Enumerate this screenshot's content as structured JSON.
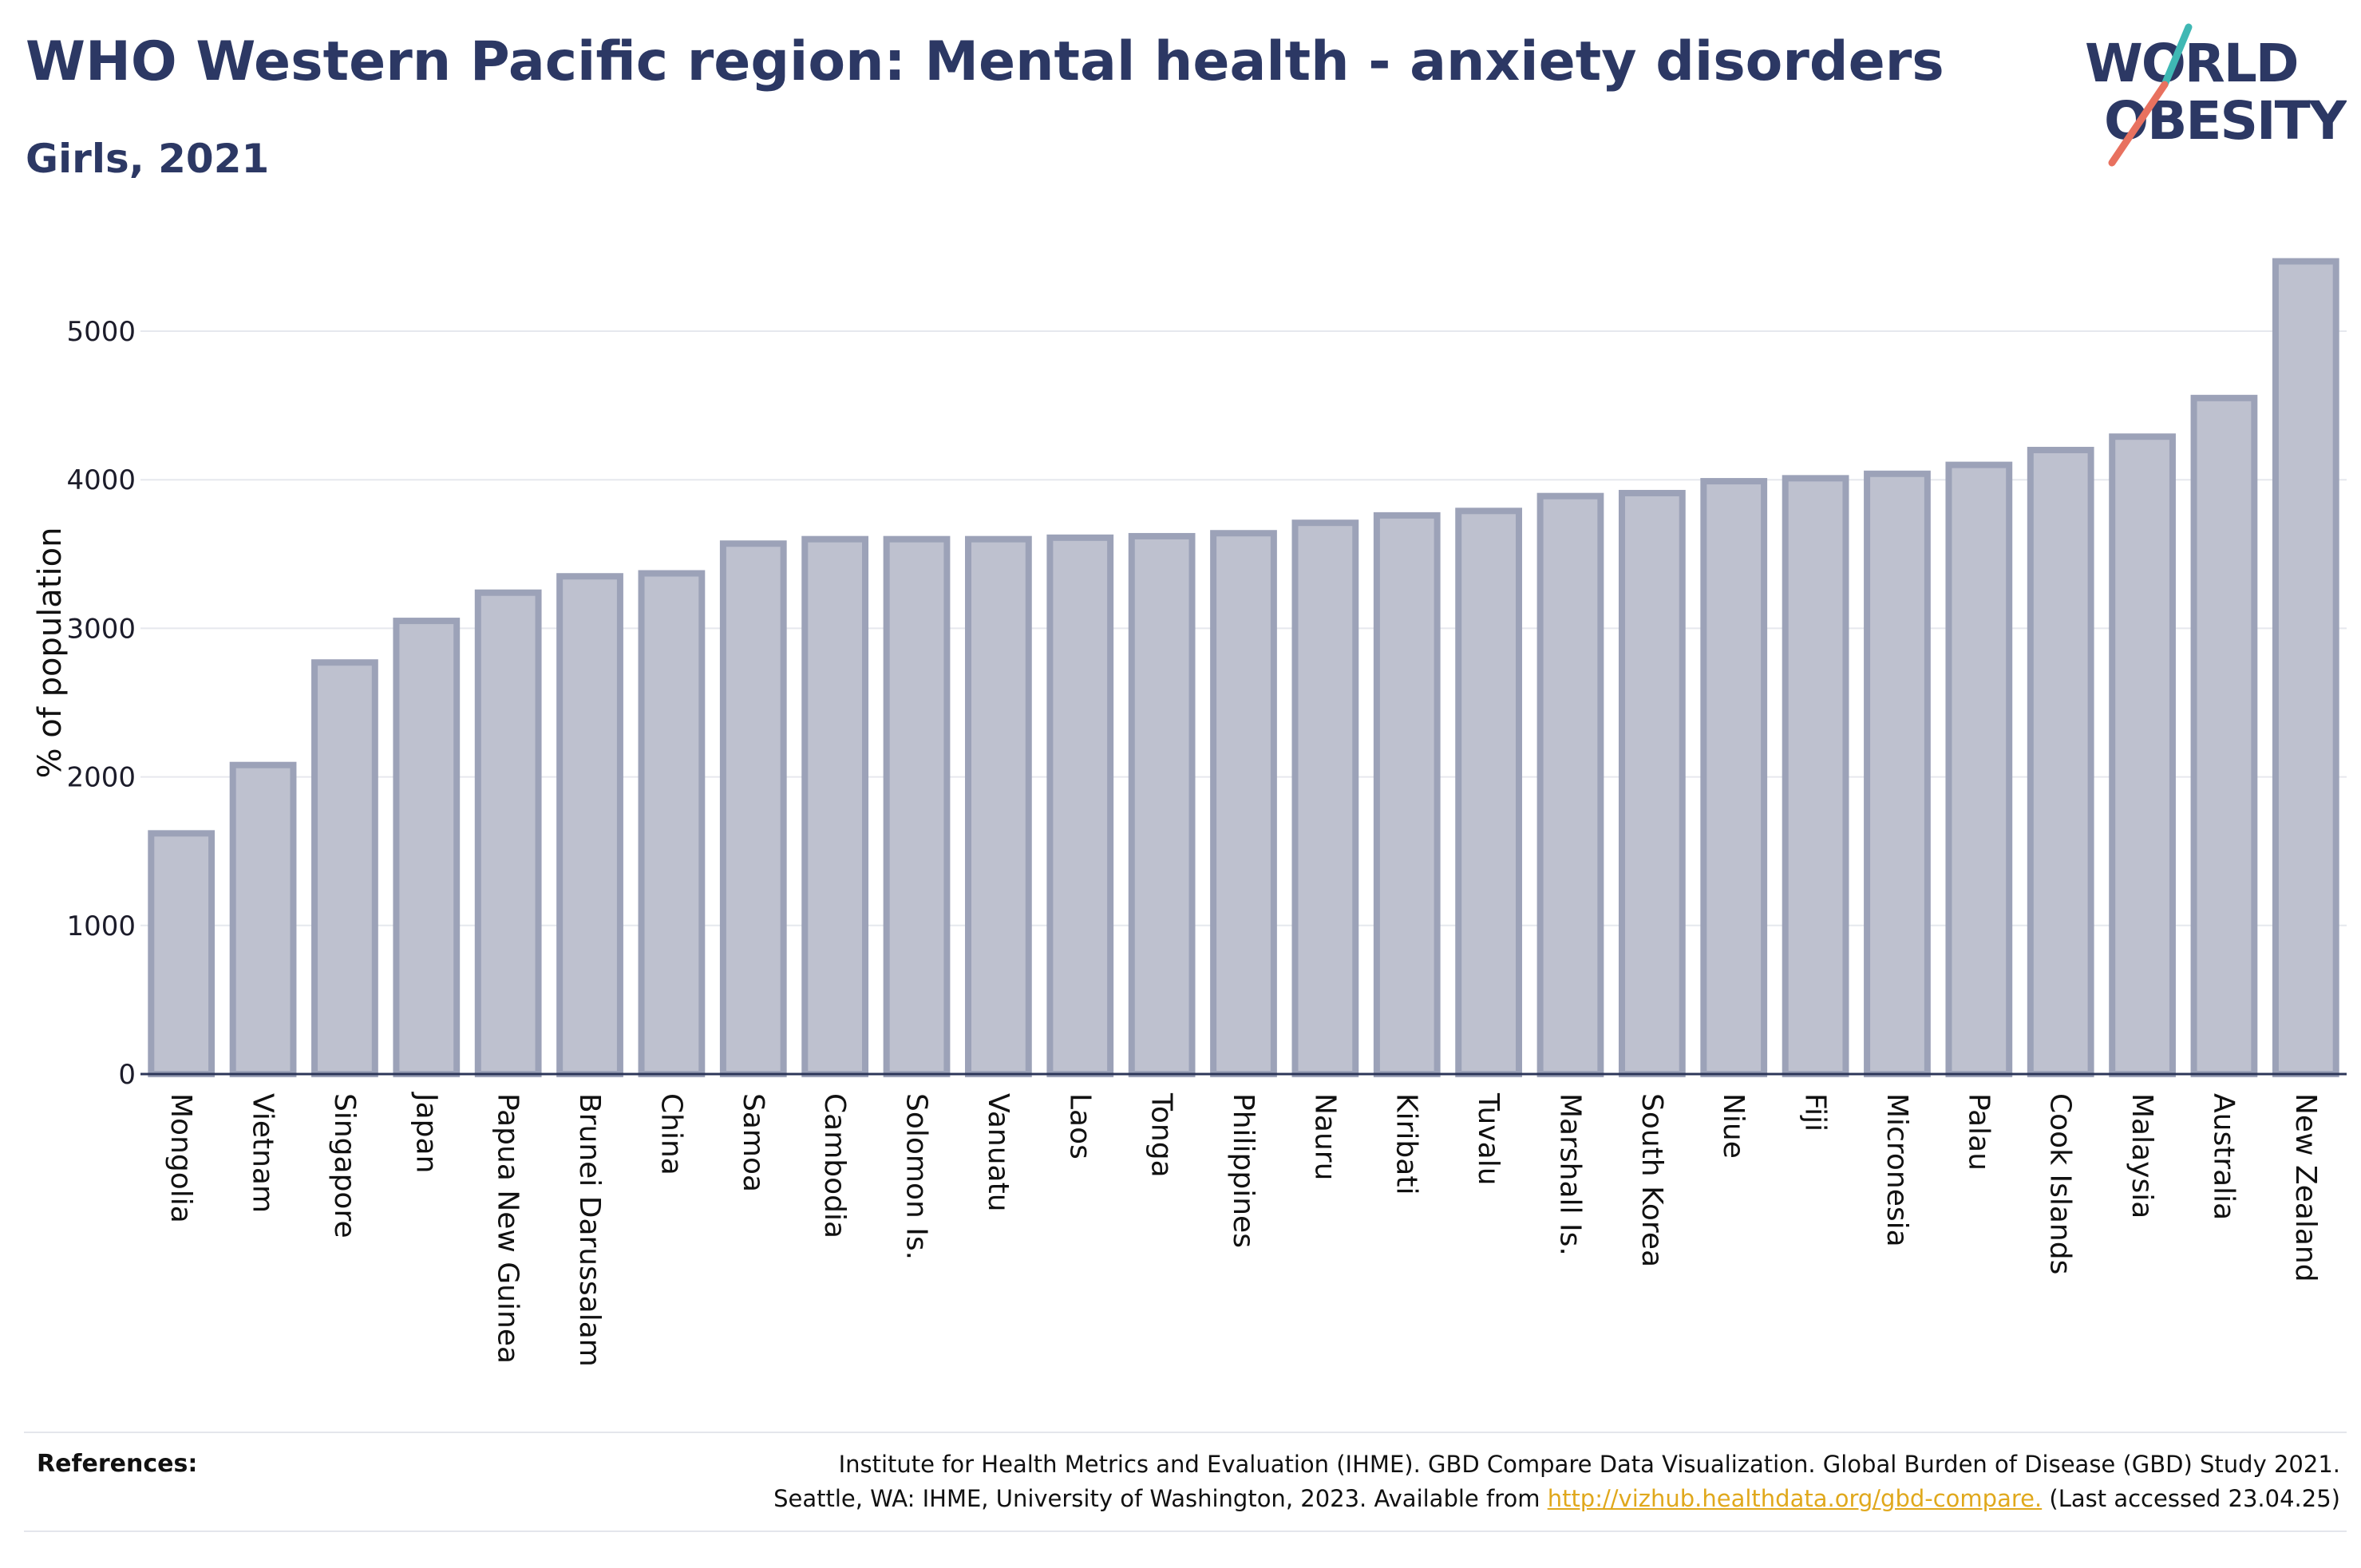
{
  "header": {
    "title": "WHO Western Pacific region: Mental health - anxiety disorders",
    "subtitle": "Girls, 2021"
  },
  "logo": {
    "line1": "WORLD",
    "line2": "OBESITY",
    "accent_teal": "#3fb8b4",
    "accent_coral": "#e8715f",
    "text_color": "#2c3864"
  },
  "colors": {
    "bar_fill": "#bec1cf",
    "bar_stroke": "#9ca2b8",
    "title": "#2c3864",
    "link": "#e0a81c"
  },
  "chart_data": {
    "type": "bar",
    "title": "WHO Western Pacific region: Mental health - anxiety disorders",
    "subtitle": "Girls, 2021",
    "xlabel": "",
    "ylabel": "% of population",
    "ylim": [
      0,
      5500
    ],
    "yticks": [
      0,
      1000,
      2000,
      3000,
      4000,
      5000
    ],
    "grid": true,
    "legend": "none",
    "categories": [
      "Mongolia",
      "Vietnam",
      "Singapore",
      "Japan",
      "Papua New Guinea",
      "Brunei Darussalam",
      "China",
      "Samoa",
      "Cambodia",
      "Solomon Is.",
      "Vanuatu",
      "Laos",
      "Tonga",
      "Philippines",
      "Nauru",
      "Kiribati",
      "Tuvalu",
      "Marshall Is.",
      "South Korea",
      "Niue",
      "Fiji",
      "Micronesia",
      "Palau",
      "Cook Islands",
      "Malaysia",
      "Australia",
      "New Zealand"
    ],
    "values": [
      1620,
      2080,
      2770,
      3050,
      3240,
      3350,
      3370,
      3570,
      3600,
      3600,
      3600,
      3610,
      3620,
      3640,
      3710,
      3760,
      3790,
      3890,
      3910,
      3990,
      4010,
      4040,
      4100,
      4200,
      4290,
      4550,
      5470
    ]
  },
  "references": {
    "label": "References:",
    "line1": "Institute for Health Metrics and Evaluation (IHME). GBD Compare Data Visualization. Global Burden of Disease (GBD) Study 2021.",
    "line2_prefix": "Seattle, WA: IHME, University of Washington, 2023. Available from",
    "link_text": "http://vizhub.healthdata.org/gbd-compare.",
    "line2_suffix": "(Last accessed 23.04.25)"
  }
}
